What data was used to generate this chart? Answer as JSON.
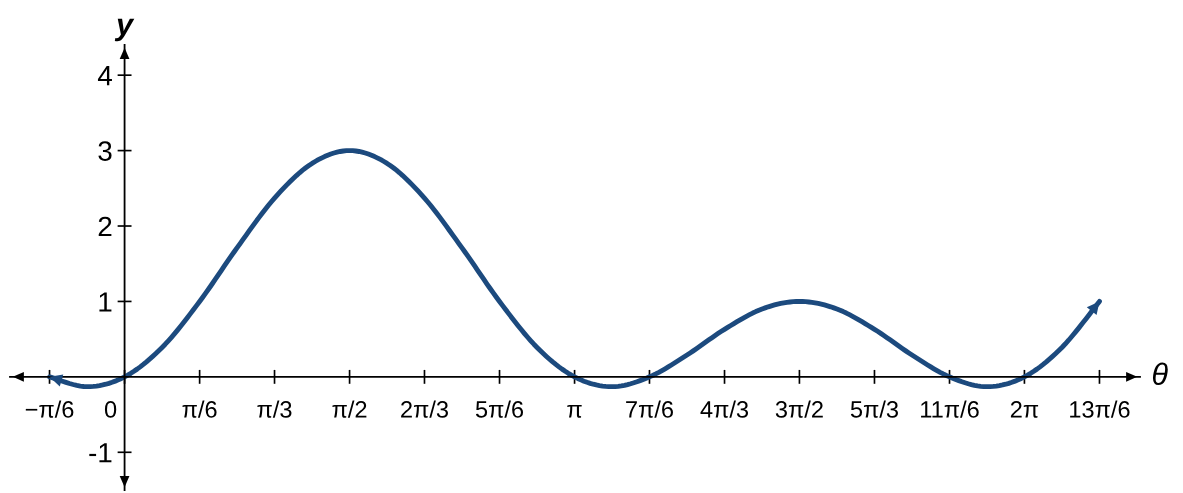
{
  "chart_data": {
    "type": "line",
    "xlabel": "θ",
    "ylabel": "y",
    "x": [
      -0.524,
      -0.262,
      0,
      0.262,
      0.524,
      0.785,
      1.047,
      1.309,
      1.571,
      1.833,
      2.094,
      2.356,
      2.618,
      2.88,
      3.142,
      3.403,
      3.665,
      3.927,
      4.189,
      4.451,
      4.712,
      4.974,
      5.236,
      5.498,
      5.76,
      6.021,
      6.283,
      6.545,
      6.807
    ],
    "series": [
      {
        "color": "#1c4a7e",
        "values": [
          0,
          -0.13,
          0,
          0.39,
          1.0,
          1.71,
          2.37,
          2.83,
          3,
          2.83,
          2.37,
          1.71,
          1.0,
          0.39,
          0,
          -0.13,
          0,
          0.29,
          0.63,
          0.9,
          1,
          0.9,
          0.63,
          0.29,
          0,
          -0.13,
          0,
          0.39,
          1.0
        ]
      }
    ],
    "xlim": [
      -0.8,
      7.09
    ],
    "ylim": [
      -1.5,
      4.4
    ],
    "xticks": [
      {
        "value": -0.524,
        "label": "−π/6"
      },
      {
        "value": 0,
        "label": "0"
      },
      {
        "value": 0.524,
        "label": "π/6"
      },
      {
        "value": 1.047,
        "label": "π/3"
      },
      {
        "value": 1.571,
        "label": "π/2"
      },
      {
        "value": 2.094,
        "label": "2π/3"
      },
      {
        "value": 2.618,
        "label": "5π/6"
      },
      {
        "value": 3.142,
        "label": "π"
      },
      {
        "value": 3.665,
        "label": "7π/6"
      },
      {
        "value": 4.189,
        "label": "4π/3"
      },
      {
        "value": 4.712,
        "label": "3π/2"
      },
      {
        "value": 5.236,
        "label": "5π/3"
      },
      {
        "value": 5.76,
        "label": "11π/6"
      },
      {
        "value": 6.283,
        "label": "2π"
      },
      {
        "value": 6.807,
        "label": "13π/6"
      }
    ],
    "yticks": [
      -1,
      1,
      2,
      3,
      4
    ],
    "grid": false,
    "marker": "none",
    "line_style": "solid"
  }
}
